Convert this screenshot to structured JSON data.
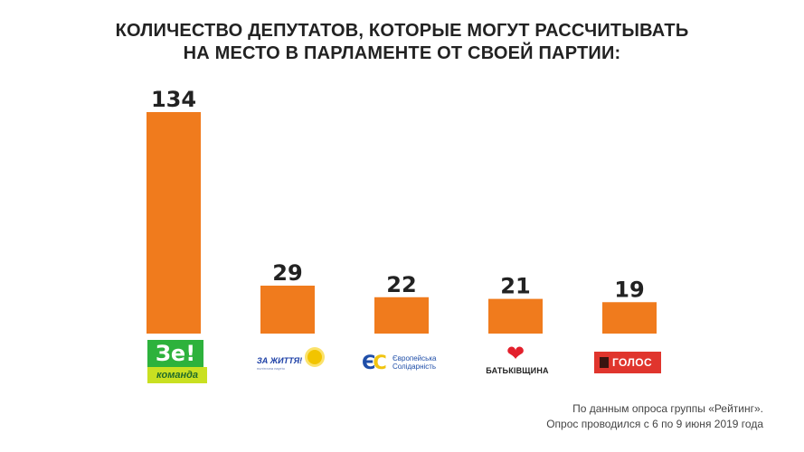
{
  "title": {
    "line1": "КОЛИЧЕСТВО ДЕПУТАТОВ, КОТОРЫЕ МОГУТ РАССЧИТЫВАТЬ",
    "line2": "НА МЕСТО В ПАРЛАМЕНТЕ ОТ СВОЕЙ ПАРТИИ:"
  },
  "colors": {
    "bar": "#f07b1d",
    "text": "#222222",
    "ze_green": "#2db23c",
    "ze_lime": "#c9e021",
    "zz_blue": "#1c3fa6",
    "es_blue": "#1f4ea8",
    "bat_red": "#e3202c",
    "golos_red": "#e0352d"
  },
  "chart_data": {
    "type": "bar",
    "title": "КОЛИЧЕСТВО ДЕПУТАТОВ, КОТОРЫЕ МОГУТ РАССЧИТЫВАТЬ НА МЕСТО В ПАРЛАМЕНТЕ ОТ СВОЕЙ ПАРТИИ:",
    "categories": [
      "Зе! команда",
      "За життя!",
      "Європейська Солідарність",
      "Батьківщина",
      "Голос"
    ],
    "values": [
      134,
      29,
      22,
      21,
      19
    ],
    "data_labels": [
      "134",
      "29",
      "22",
      "21",
      "19"
    ],
    "xlabel": "",
    "ylabel": "",
    "ylim": [
      0,
      134
    ],
    "grid": false,
    "legend": "none"
  },
  "logos": {
    "ze": {
      "top": "Зе!",
      "bottom": "команда",
      "icon": "ze-komanda-logo"
    },
    "zz": {
      "main": "ЗА ЖИТТЯ!",
      "sub": "політична партія",
      "icon": "sun-icon"
    },
    "es": {
      "mark_left": "Є",
      "mark_right": "С",
      "line1": "Європейська",
      "line2": "Солідарність",
      "icon": "es-logo"
    },
    "bat": {
      "text": "БАТЬКІВЩИНА",
      "icon": "heart-icon"
    },
    "golos": {
      "text": "ГОЛОС",
      "icon": "golos-square-icon"
    }
  },
  "footer": {
    "line1": "По данным опроса группы «Рейтинг».",
    "line2": "Опрос проводился с 6 по 9 июня 2019 года"
  }
}
